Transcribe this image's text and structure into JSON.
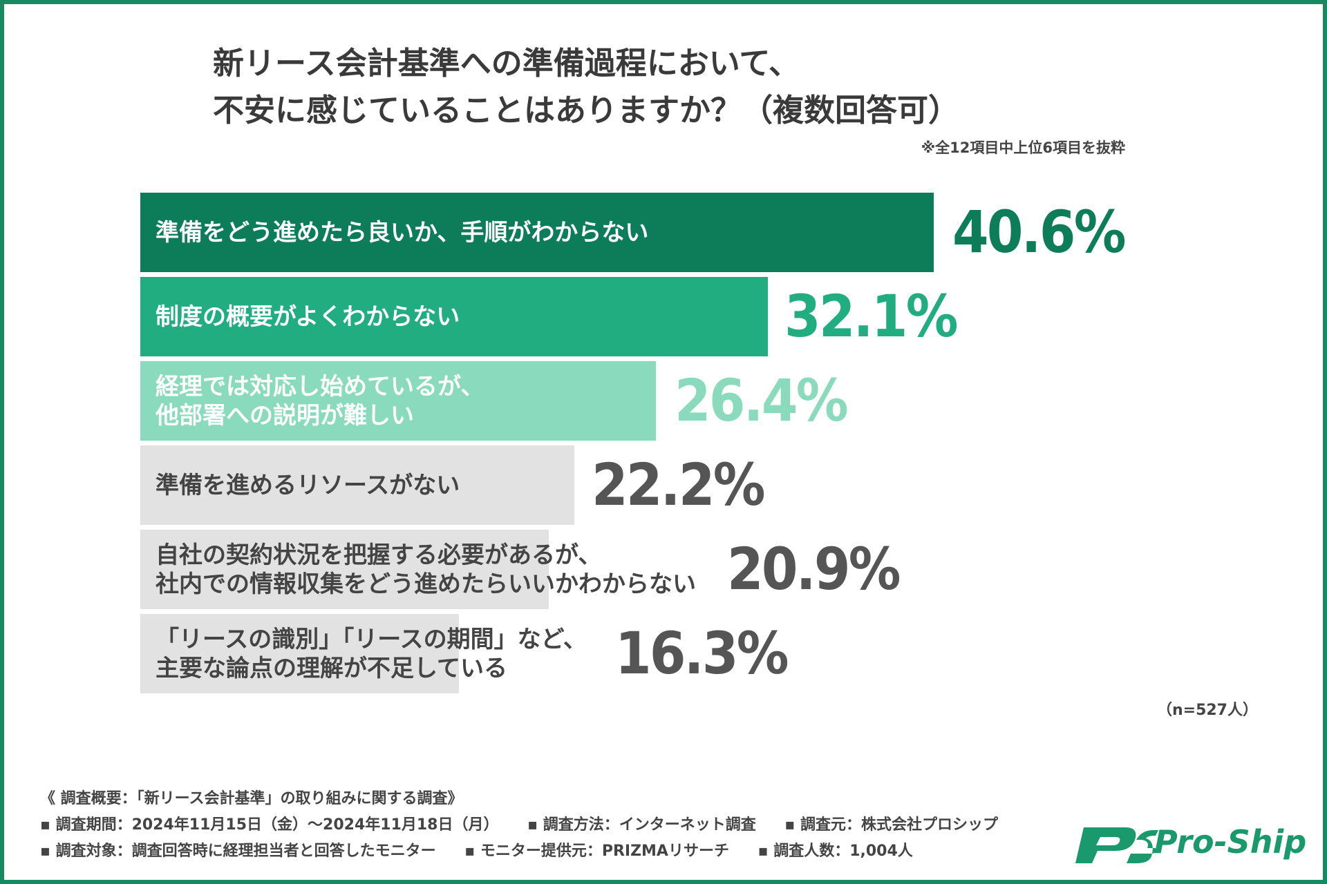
{
  "title_lines": [
    "新リース会計基準への準備過程において、",
    "不安に感じていることはありますか？（複数回答可）"
  ],
  "note": "※全12項目中上位6項目を抜粋",
  "sample_size": "（n=527人）",
  "colors": {
    "frame": "#178a62",
    "bar_1": "#0d7c59",
    "bar_2": "#22ad80",
    "bar_3": "#8adbbe",
    "bar_gray": "#e2e2e2",
    "value_1": "#0d7c59",
    "value_2": "#22ad80",
    "value_3": "#8adbbe",
    "value_gray": "#555555"
  },
  "chart_data": {
    "type": "bar",
    "orientation": "horizontal",
    "categories": [
      "準備をどう進めたら良いか、手順がわからない",
      "制度の概要がよくわからない",
      "経理では対応し始めているが、\n他部署への説明が難しい",
      "準備を進めるリソースがない",
      "自社の契約状況を把握する必要があるが、\n社内での情報収集をどう進めたらいいかわからない",
      "「リースの識別」「リースの期間」など、\n主要な論点の理解が不足している"
    ],
    "values": [
      40.6,
      32.1,
      26.4,
      22.2,
      20.9,
      16.3
    ],
    "value_labels": [
      "40.6%",
      "32.1%",
      "26.4%",
      "22.2%",
      "20.9%",
      "16.3%"
    ],
    "unit": "%"
  },
  "survey": {
    "heading": "《 調査概要：「新リース会計基準」の取り組みに関する調査》",
    "line2": [
      "▪ 調査期間：2024年11月15日（金）〜2024年11月18日（月）",
      "▪ 調査方法：インターネット調査",
      "▪ 調査元：株式会社プロシップ"
    ],
    "line3": [
      "▪ 調査対象：調査回答時に経理担当者と回答したモニター",
      "▪ モニター提供元：PRIZMAリサーチ",
      "▪ 調査人数：1,004人"
    ]
  },
  "logo": {
    "text": "Pro-Ship",
    "mark_icon": "ps-logo-mark-icon"
  }
}
